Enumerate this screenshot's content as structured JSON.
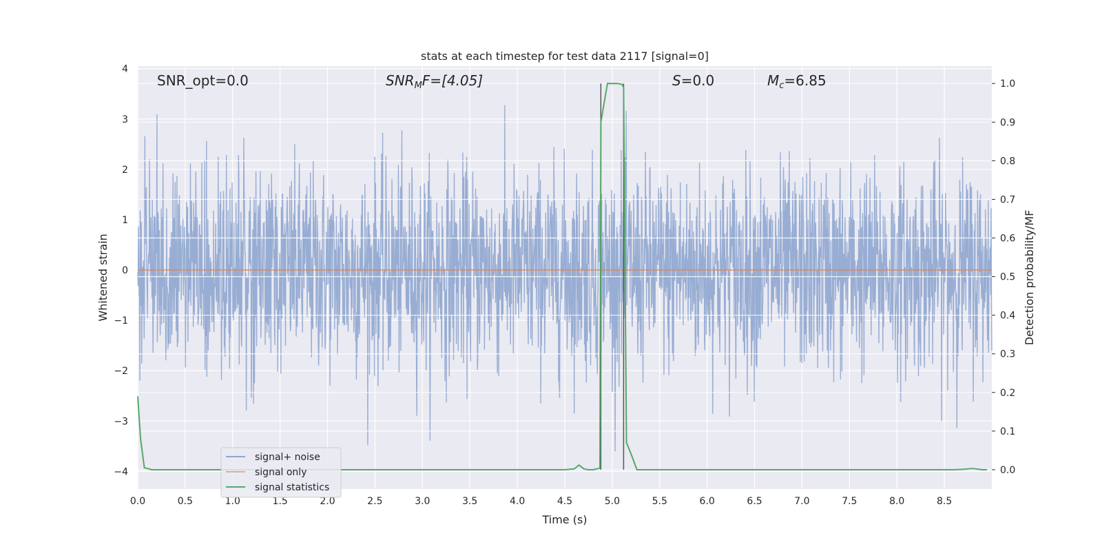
{
  "chart_data": {
    "type": "line",
    "title": "stats at each timestep for test data 2117 [signal=0]",
    "xlabel": "Time (s)",
    "ylabel_left": "Whitened strain",
    "ylabel_right": "Detection probability/MF",
    "xlim": [
      0.0,
      9.0
    ],
    "ylim_left": [
      -4.35,
      4.05
    ],
    "ylim_right": [
      -0.05,
      1.045
    ],
    "x_ticks": [
      "0.0",
      "0.5",
      "1.0",
      "1.5",
      "2.0",
      "2.5",
      "3.0",
      "3.5",
      "4.0",
      "4.5",
      "5.0",
      "5.5",
      "6.0",
      "6.5",
      "7.0",
      "7.5",
      "8.0",
      "8.5"
    ],
    "y_ticks_left": [
      "4",
      "3",
      "2",
      "1",
      "0",
      "−1",
      "−2",
      "−3",
      "−4"
    ],
    "y_ticks_right": [
      "1.0",
      "0.9",
      "0.8",
      "0.7",
      "0.6",
      "0.5",
      "0.4",
      "0.3",
      "0.2",
      "0.1",
      "0.0"
    ],
    "grid": true,
    "annotations": {
      "snr_opt": "SNR_opt=0.0",
      "snr_mf_base": "SNR",
      "snr_mf_sub": "M",
      "snr_mf_rest": "F=[4.05]",
      "s_base": "S",
      "s_rest": "=0.0",
      "mc_base": "M",
      "mc_sub": "c",
      "mc_rest": "=6.85"
    },
    "vlines_x": [
      4.88,
      5.12
    ],
    "series": [
      {
        "name": "signal+ noise",
        "color": "#8fa6cf",
        "description_values": "dense noise, approx. gaussian, amplitude mostly within ±2, peaks up to ±3.6",
        "amplitude_envelope": 1.0,
        "peak_abs": 3.6
      },
      {
        "name": "signal only",
        "color": "#dd8452",
        "x": [
          0.0,
          9.0
        ],
        "y": [
          0.0,
          0.0
        ]
      },
      {
        "name": "signal statistics",
        "color": "#55a868",
        "axis": "right",
        "x": [
          0.0,
          0.03,
          0.07,
          0.15,
          0.3,
          1.0,
          2.0,
          3.0,
          4.0,
          4.5,
          4.6,
          4.65,
          4.7,
          4.75,
          4.8,
          4.87,
          4.88,
          4.95,
          5.0,
          5.05,
          5.1,
          5.12,
          5.15,
          5.2,
          5.26,
          5.4,
          6.0,
          7.0,
          8.0,
          8.6,
          8.7,
          8.8,
          8.9,
          8.95
        ],
        "y": [
          0.19,
          0.08,
          0.005,
          0.0,
          0.0,
          0.0,
          0.0,
          0.0,
          0.0,
          0.0,
          0.002,
          0.012,
          0.002,
          0.0,
          0.0,
          0.004,
          0.9,
          1.0,
          1.0,
          1.0,
          0.998,
          0.99,
          0.07,
          0.04,
          0.0,
          0.0,
          0.0,
          0.0,
          0.0,
          0.0,
          0.001,
          0.003,
          0.0,
          0.0
        ]
      }
    ],
    "legend": {
      "placement": "lower-left",
      "entries": [
        "signal+ noise",
        "signal only",
        "signal statistics"
      ]
    }
  }
}
